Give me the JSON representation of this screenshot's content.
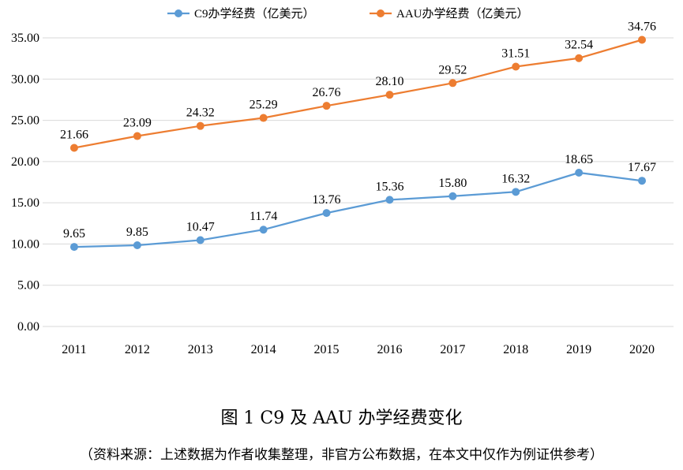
{
  "chart_data": {
    "type": "line",
    "categories": [
      "2011",
      "2012",
      "2013",
      "2014",
      "2015",
      "2016",
      "2017",
      "2018",
      "2019",
      "2020"
    ],
    "series": [
      {
        "name": "C9办学经费（亿美元）",
        "color": "#5b9bd5",
        "values": [
          9.65,
          9.85,
          10.47,
          11.74,
          13.76,
          15.36,
          15.8,
          16.32,
          18.65,
          17.67
        ],
        "labels": [
          "9.65",
          "9.85",
          "10.47",
          "11.74",
          "13.76",
          "15.36",
          "15.80",
          "16.32",
          "18.65",
          "17.67"
        ]
      },
      {
        "name": "AAU办学经费（亿美元）",
        "color": "#ed7d31",
        "values": [
          21.66,
          23.09,
          24.32,
          25.29,
          26.76,
          28.1,
          29.52,
          31.51,
          32.54,
          34.76
        ],
        "labels": [
          "21.66",
          "23.09",
          "24.32",
          "25.29",
          "26.76",
          "28.10",
          "29.52",
          "31.51",
          "32.54",
          "34.76"
        ]
      }
    ],
    "y_ticks": [
      "0.00",
      "5.00",
      "10.00",
      "15.00",
      "20.00",
      "25.00",
      "30.00",
      "35.00"
    ],
    "ylim": [
      0,
      35
    ],
    "grid": true,
    "legend_position": "top-center",
    "title": "图 1  C9 及 AAU 办学经费变化",
    "source_note": "（资料来源：上述数据为作者收集整理，非官方公布数据，在本文中仅作为例证供参考）"
  },
  "colors": {
    "grid": "#d9d9d9",
    "axis": "#d9d9d9"
  }
}
